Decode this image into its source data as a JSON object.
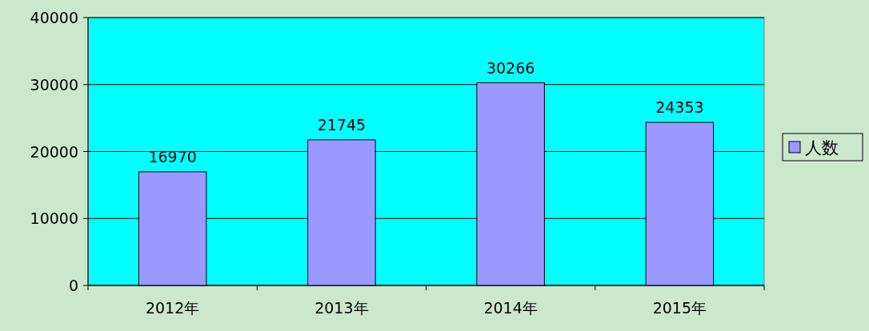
{
  "chart_data": {
    "type": "bar",
    "categories": [
      "2012年",
      "2013年",
      "2014年",
      "2015年"
    ],
    "series": [
      {
        "name": "人数",
        "color": "#9999ff",
        "values": [
          16970,
          21745,
          30266,
          24353
        ]
      }
    ],
    "ylim": [
      0,
      40000
    ],
    "yticks": [
      0,
      10000,
      20000,
      30000,
      40000
    ],
    "grid": "y",
    "legend": "right",
    "data_labels": true
  }
}
